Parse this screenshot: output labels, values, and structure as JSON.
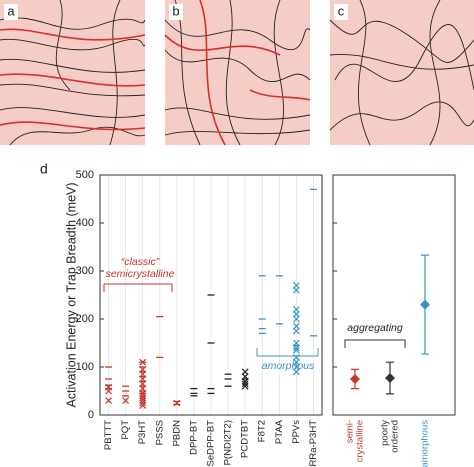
{
  "panel_labels": [
    "a",
    "b",
    "c"
  ],
  "chart_data": {
    "type": "marker-strip",
    "panel_label": "d",
    "y_label": "Activation Energy or Trap Breadth (meV)",
    "ylim": [
      0,
      500
    ],
    "yticks": [
      0,
      100,
      200,
      300,
      400,
      500
    ],
    "categories": [
      "PBTTT",
      "PQT",
      "P3HT",
      "PSSS",
      "PBDN",
      "DPP-BT",
      "SeDPP-BT",
      "P(NDI2T2)",
      "PCDTBT",
      "F8T2",
      "PTAA",
      "PPVs",
      "RRa-P3HT"
    ],
    "colors": [
      "#c8352e",
      "#c8352e",
      "#c8352e",
      "#c8352e",
      "#c8352e",
      "#222222",
      "#222222",
      "#222222",
      "#222222",
      "#3a93c8",
      "#3a93c8",
      "#3a93c8",
      "#3a93c8"
    ],
    "dash_values": [
      [
        100,
        75,
        62,
        55
      ],
      [
        60,
        50,
        40
      ],
      [
        110,
        100,
        90,
        80,
        70,
        60,
        50,
        45
      ],
      [
        205,
        120
      ],
      [
        28,
        22
      ],
      [
        55,
        45,
        40
      ],
      [
        250,
        150,
        55,
        45
      ],
      [
        85,
        75,
        60
      ],
      [
        75
      ],
      [
        290,
        200,
        180,
        170
      ],
      [
        290,
        190
      ],
      [
        145
      ],
      [
        470,
        165
      ]
    ],
    "cross_values": [
      [
        58,
        50,
        30
      ],
      [
        30
      ],
      [
        110,
        95,
        85,
        75,
        65,
        55,
        45,
        40,
        35,
        30,
        25,
        20
      ],
      [],
      [
        25
      ],
      [],
      [],
      [],
      [
        90,
        80,
        70,
        65,
        60
      ],
      [],
      [],
      [
        270,
        260,
        220,
        210,
        200,
        185,
        175,
        150,
        140,
        135,
        120,
        110,
        100,
        90
      ],
      []
    ],
    "annotations": [
      "“classic”",
      "semicrystalline",
      "amorphous",
      "aggregating"
    ],
    "summary": {
      "categories": [
        [
          "semi-",
          "crystalline"
        ],
        [
          "poorly",
          "ordered"
        ],
        [
          "amorphous"
        ]
      ],
      "colors": [
        "#c8352e",
        "#333333",
        "#3a93c8"
      ],
      "values": [
        75,
        77,
        230
      ],
      "errors": [
        20,
        33,
        103
      ]
    }
  }
}
